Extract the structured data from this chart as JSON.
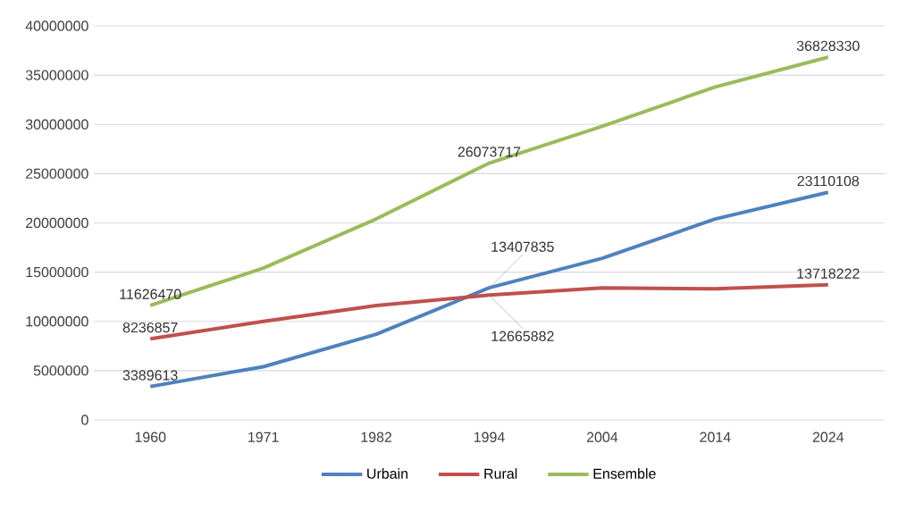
{
  "chart_data": {
    "type": "line",
    "categories": [
      "1960",
      "1971",
      "1982",
      "1994",
      "2004",
      "2014",
      "2024"
    ],
    "series": [
      {
        "name": "Urbain",
        "color": "#4f81bd",
        "values": [
          3389613,
          5400000,
          8700000,
          13407835,
          16400000,
          20400000,
          23110108
        ],
        "value_labels": [
          "3389613",
          null,
          null,
          "13407835",
          null,
          null,
          "23110108"
        ]
      },
      {
        "name": "Rural",
        "color": "#c0504d",
        "values": [
          8236857,
          10000000,
          11600000,
          12665882,
          13400000,
          13300000,
          13718222
        ],
        "value_labels": [
          "8236857",
          null,
          null,
          "12665882",
          null,
          null,
          "13718222"
        ]
      },
      {
        "name": "Ensemble",
        "color": "#9bbb59",
        "values": [
          11626470,
          15400000,
          20400000,
          26073717,
          29800000,
          33800000,
          36828330
        ],
        "value_labels": [
          "11626470",
          null,
          null,
          "26073717",
          null,
          null,
          "36828330"
        ]
      }
    ],
    "ylim": [
      0,
      40000000
    ],
    "yticks": [
      0,
      5000000,
      10000000,
      15000000,
      20000000,
      25000000,
      30000000,
      35000000,
      40000000
    ],
    "grid": "y",
    "legend": "bottom",
    "marker": "none",
    "line_style": "solid"
  }
}
